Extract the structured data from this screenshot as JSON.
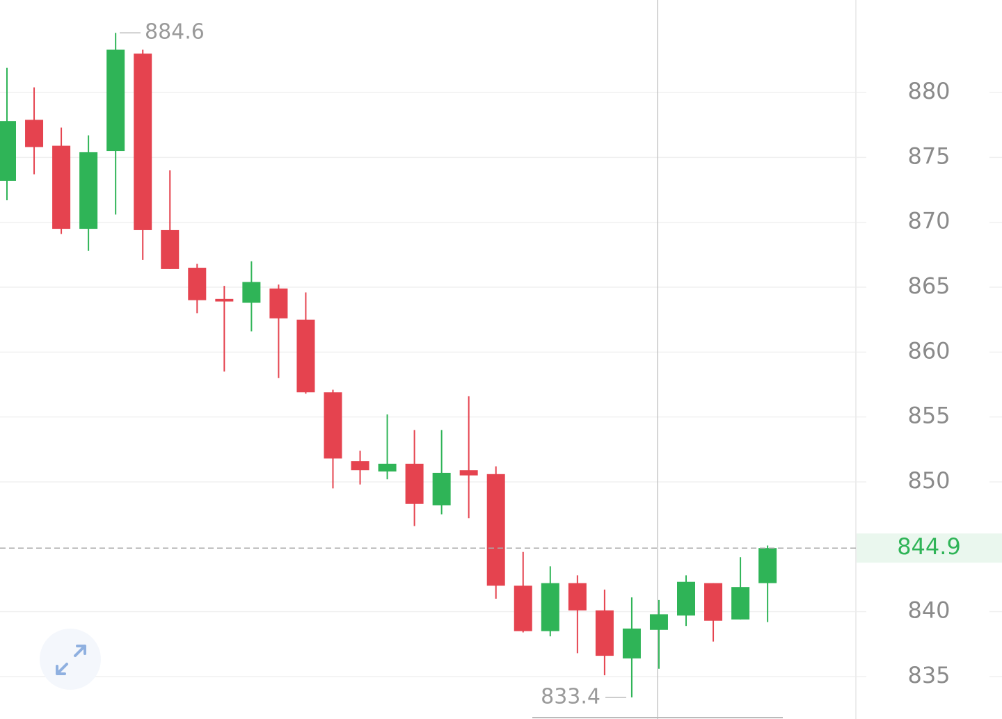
{
  "chart_data": {
    "type": "candlestick",
    "open": [
      873.2,
      877.9,
      875.9,
      869.5,
      875.5,
      883.0,
      869.4,
      866.5,
      864.1,
      863.8,
      864.9,
      862.5,
      856.9,
      851.6,
      850.8,
      851.4,
      848.2,
      850.9,
      850.6,
      842.0,
      838.5,
      842.2,
      840.1,
      836.4,
      838.6,
      839.7,
      842.2,
      839.4,
      842.2
    ],
    "high": [
      881.9,
      880.4,
      877.3,
      876.7,
      884.6,
      883.3,
      874.0,
      866.8,
      865.1,
      867.0,
      865.2,
      864.6,
      857.1,
      852.4,
      855.2,
      854.0,
      854.0,
      856.6,
      851.2,
      844.6,
      843.5,
      842.8,
      841.7,
      841.1,
      840.9,
      842.8,
      842.2,
      844.2,
      845.1
    ],
    "low": [
      871.7,
      873.7,
      869.1,
      867.8,
      870.6,
      867.1,
      866.4,
      863.0,
      858.5,
      861.6,
      858.0,
      856.8,
      849.5,
      849.8,
      850.2,
      846.6,
      847.5,
      847.2,
      841.0,
      838.4,
      838.1,
      836.8,
      835.1,
      833.4,
      835.6,
      838.9,
      837.7,
      839.4,
      839.2
    ],
    "close": [
      877.8,
      875.8,
      869.5,
      875.4,
      883.3,
      869.4,
      866.4,
      864.0,
      863.9,
      865.4,
      862.6,
      856.9,
      851.8,
      850.9,
      851.4,
      848.3,
      850.7,
      850.5,
      842.0,
      838.5,
      842.2,
      840.1,
      836.6,
      838.7,
      839.8,
      842.3,
      839.3,
      841.9,
      844.9
    ],
    "up_color": "#2fb457",
    "down_color": "#e5434f",
    "ylim": [
      831.73,
      887.13
    ],
    "yticks": [
      835,
      840,
      850,
      855,
      860,
      865,
      870,
      875,
      880
    ],
    "grid": true,
    "max_label": 884.6,
    "min_label": 833.4,
    "last_price": 844.9
  }
}
